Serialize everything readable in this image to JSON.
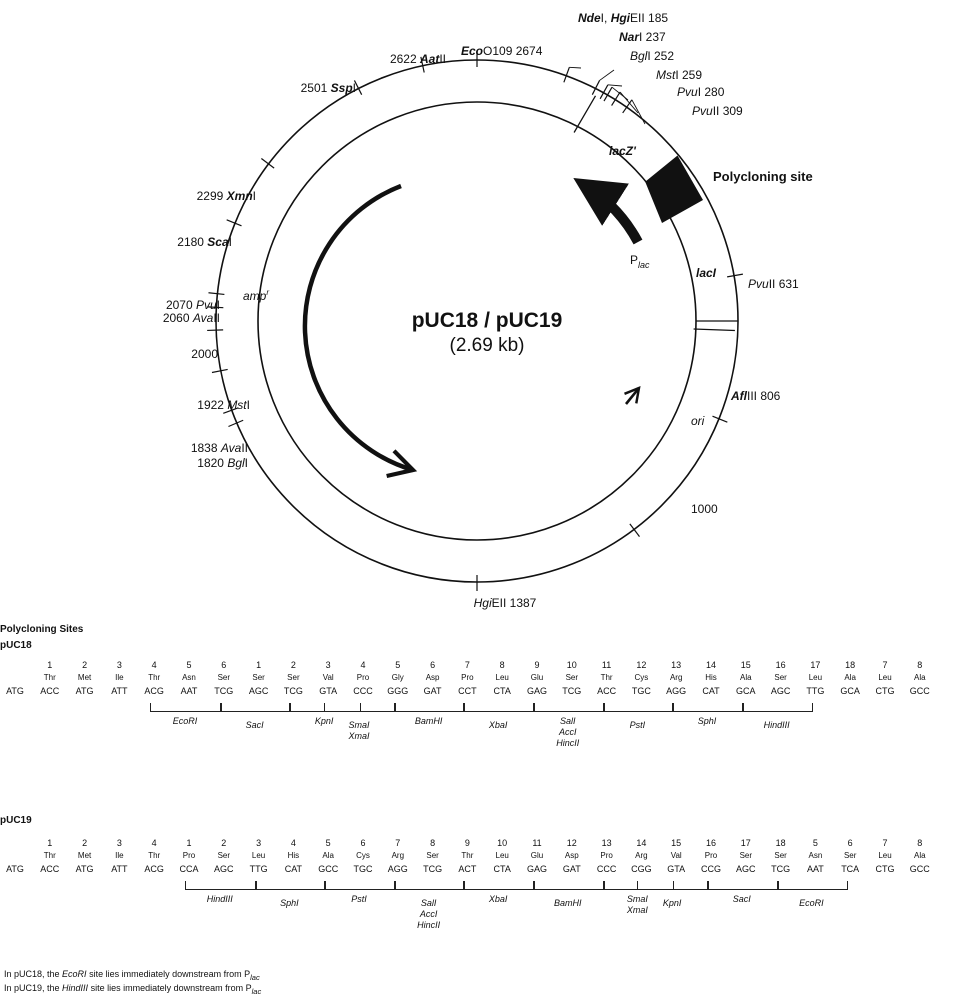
{
  "plasmid": {
    "name": "pUC18 / pUC19",
    "size": "(2.69 kb)",
    "sites": [
      {
        "pre": "",
        "name": "Nde",
        "post": "I, ",
        "name2": "Hgi",
        "post2": "EII 185",
        "bold": true,
        "angle": 20
      },
      {
        "pre": "",
        "name": "Nar",
        "post": "I 237",
        "bold": true,
        "angle": 27
      },
      {
        "pre": "",
        "name": "Bgl",
        "post": "I 252",
        "bold": false,
        "angle": 29
      },
      {
        "pre": "",
        "name": "Mst",
        "post": "I 259",
        "bold": false,
        "angle": 30
      },
      {
        "pre": "",
        "name": "Pvu",
        "post": "I 280",
        "bold": false,
        "angle": 32
      },
      {
        "pre": "",
        "name": "Pvu",
        "post": "II 309",
        "bold": false,
        "angle": 35
      },
      {
        "pre": "",
        "name": "Pvu",
        "post": "II 631",
        "bold": false,
        "angle": 80
      },
      {
        "pre": "",
        "name": "Afl",
        "post": "III 806",
        "bold": true,
        "angle": 112
      },
      {
        "pre": "",
        "name": "1000",
        "post": "",
        "bold": false,
        "angle": 143,
        "plain": true
      },
      {
        "pre": "",
        "name": "Hgi",
        "post": "EII 1387",
        "bold": false,
        "angle": 180
      },
      {
        "pre": "1820 ",
        "name": "Bgl",
        "post": "I",
        "bold": false,
        "angle": 247
      },
      {
        "pre": "1838 ",
        "name": "Ava",
        "post": "II",
        "bold": false,
        "angle": 250
      },
      {
        "pre": "1922 ",
        "name": "Mst",
        "post": "I",
        "bold": false,
        "angle": 259
      },
      {
        "pre": "2000",
        "name": "",
        "post": "",
        "bold": false,
        "angle": 268,
        "plain": true
      },
      {
        "pre": "2060 ",
        "name": "Ava",
        "post": "II",
        "bold": false,
        "angle": 273
      },
      {
        "pre": "2070 ",
        "name": "Pvu",
        "post": "I",
        "bold": false,
        "angle": 276
      },
      {
        "pre": "2180 ",
        "name": "Sca",
        "post": "I",
        "bold": true,
        "angle": 292
      },
      {
        "pre": "2299 ",
        "name": "Xmn",
        "post": "I",
        "bold": true,
        "angle": 307
      },
      {
        "pre": "2501 ",
        "name": "Ssp",
        "post": "I",
        "bold": true,
        "angle": 333
      },
      {
        "pre": "2622 ",
        "name": "Aat",
        "post": "II",
        "bold": true,
        "angle": 348
      },
      {
        "pre": "",
        "name": "Eco",
        "post": "O109 2674",
        "bold": true,
        "angle": 360
      }
    ],
    "regions": {
      "lacZ": "lacZ'",
      "lacI": "lacI",
      "amp": "amp",
      "amp_sup": "r",
      "ori": "ori",
      "plac": "P",
      "plac_sub": "lac",
      "polycloning": "Polycloning site"
    }
  },
  "poly": {
    "title": "Polycloning Sites",
    "pUC18": {
      "label": "pUC18",
      "codons": [
        {
          "n": "",
          "aa": "",
          "c": "ATG"
        },
        {
          "n": "1",
          "aa": "Thr",
          "c": "ACC"
        },
        {
          "n": "2",
          "aa": "Met",
          "c": "ATG"
        },
        {
          "n": "3",
          "aa": "Ile",
          "c": "ATT"
        },
        {
          "n": "4",
          "aa": "Thr",
          "c": "ACG"
        },
        {
          "n": "5",
          "aa": "Asn",
          "c": "AAT"
        },
        {
          "n": "6",
          "aa": "Ser",
          "c": "TCG"
        },
        {
          "n": "1",
          "aa": "Ser",
          "c": "AGC"
        },
        {
          "n": "2",
          "aa": "Ser",
          "c": "TCG"
        },
        {
          "n": "3",
          "aa": "Val",
          "c": "GTA"
        },
        {
          "n": "4",
          "aa": "Pro",
          "c": "CCC"
        },
        {
          "n": "5",
          "aa": "Gly",
          "c": "GGG"
        },
        {
          "n": "6",
          "aa": "Asp",
          "c": "GAT"
        },
        {
          "n": "7",
          "aa": "Pro",
          "c": "CCT"
        },
        {
          "n": "8",
          "aa": "Leu",
          "c": "CTA"
        },
        {
          "n": "9",
          "aa": "Glu",
          "c": "GAG"
        },
        {
          "n": "10",
          "aa": "Ser",
          "c": "TCG"
        },
        {
          "n": "11",
          "aa": "Thr",
          "c": "ACC"
        },
        {
          "n": "12",
          "aa": "Cys",
          "c": "TGC"
        },
        {
          "n": "13",
          "aa": "Arg",
          "c": "AGG"
        },
        {
          "n": "14",
          "aa": "His",
          "c": "CAT"
        },
        {
          "n": "15",
          "aa": "Ala",
          "c": "GCA"
        },
        {
          "n": "16",
          "aa": "Ser",
          "c": "AGC"
        },
        {
          "n": "17",
          "aa": "Leu",
          "c": "TTG"
        },
        {
          "n": "18",
          "aa": "Ala",
          "c": "GCA"
        },
        {
          "n": "7",
          "aa": "Leu",
          "c": "CTG"
        },
        {
          "n": "8",
          "aa": "Ala",
          "c": "GCC"
        }
      ],
      "enzymes": [
        {
          "lines": [
            "EcoRI"
          ],
          "from": 4,
          "to": 6
        },
        {
          "lines": [
            "SacI"
          ],
          "from": 6,
          "to": 8
        },
        {
          "lines": [
            "KpnI"
          ],
          "from": 8,
          "to": 10
        },
        {
          "lines": [
            "SmaI",
            "XmaI"
          ],
          "from": 9,
          "to": 11
        },
        {
          "lines": [
            "BamHI"
          ],
          "from": 11,
          "to": 13
        },
        {
          "lines": [
            "XbaI"
          ],
          "from": 13,
          "to": 15
        },
        {
          "lines": [
            "SalI",
            "AccI",
            "HincII"
          ],
          "from": 15,
          "to": 17
        },
        {
          "lines": [
            "PstI"
          ],
          "from": 17,
          "to": 19
        },
        {
          "lines": [
            "SphI"
          ],
          "from": 19,
          "to": 21
        },
        {
          "lines": [
            "HindIII"
          ],
          "from": 21,
          "to": 23
        }
      ]
    },
    "pUC19": {
      "label": "pUC19",
      "codons": [
        {
          "n": "",
          "aa": "",
          "c": "ATG"
        },
        {
          "n": "1",
          "aa": "Thr",
          "c": "ACC"
        },
        {
          "n": "2",
          "aa": "Met",
          "c": "ATG"
        },
        {
          "n": "3",
          "aa": "Ile",
          "c": "ATT"
        },
        {
          "n": "4",
          "aa": "Thr",
          "c": "ACG"
        },
        {
          "n": "1",
          "aa": "Pro",
          "c": "CCA"
        },
        {
          "n": "2",
          "aa": "Ser",
          "c": "AGC"
        },
        {
          "n": "3",
          "aa": "Leu",
          "c": "TTG"
        },
        {
          "n": "4",
          "aa": "His",
          "c": "CAT"
        },
        {
          "n": "5",
          "aa": "Ala",
          "c": "GCC"
        },
        {
          "n": "6",
          "aa": "Cys",
          "c": "TGC"
        },
        {
          "n": "7",
          "aa": "Arg",
          "c": "AGG"
        },
        {
          "n": "8",
          "aa": "Ser",
          "c": "TCG"
        },
        {
          "n": "9",
          "aa": "Thr",
          "c": "ACT"
        },
        {
          "n": "10",
          "aa": "Leu",
          "c": "CTA"
        },
        {
          "n": "11",
          "aa": "Glu",
          "c": "GAG"
        },
        {
          "n": "12",
          "aa": "Asp",
          "c": "GAT"
        },
        {
          "n": "13",
          "aa": "Pro",
          "c": "CCC"
        },
        {
          "n": "14",
          "aa": "Arg",
          "c": "CGG"
        },
        {
          "n": "15",
          "aa": "Val",
          "c": "GTA"
        },
        {
          "n": "16",
          "aa": "Pro",
          "c": "CCG"
        },
        {
          "n": "17",
          "aa": "Ser",
          "c": "AGC"
        },
        {
          "n": "18",
          "aa": "Ser",
          "c": "TCG"
        },
        {
          "n": "5",
          "aa": "Asn",
          "c": "AAT"
        },
        {
          "n": "6",
          "aa": "Ser",
          "c": "TCA"
        },
        {
          "n": "7",
          "aa": "Leu",
          "c": "CTG"
        },
        {
          "n": "8",
          "aa": "Ala",
          "c": "GCC"
        }
      ],
      "enzymes": [
        {
          "lines": [
            "HindIII"
          ],
          "from": 5,
          "to": 7
        },
        {
          "lines": [
            "SphI"
          ],
          "from": 7,
          "to": 9
        },
        {
          "lines": [
            "PstI"
          ],
          "from": 9,
          "to": 11
        },
        {
          "lines": [
            "SalI",
            "AccI",
            "HincII"
          ],
          "from": 11,
          "to": 13
        },
        {
          "lines": [
            "XbaI"
          ],
          "from": 13,
          "to": 15
        },
        {
          "lines": [
            "BamHI"
          ],
          "from": 15,
          "to": 17
        },
        {
          "lines": [
            "SmaI",
            "XmaI"
          ],
          "from": 17,
          "to": 19
        },
        {
          "lines": [
            "KpnI"
          ],
          "from": 18,
          "to": 20
        },
        {
          "lines": [
            "SacI"
          ],
          "from": 20,
          "to": 22
        },
        {
          "lines": [
            "EcoRI"
          ],
          "from": 22,
          "to": 24
        }
      ]
    }
  },
  "notes": [
    {
      "a": "In pUC18, the ",
      "b": "EcoRI",
      "c": " site lies immediately downstream from P",
      "d": "lac"
    },
    {
      "a": "In pUC19, the ",
      "b": "HindIII",
      "c": " site lies immediately downstream from P",
      "d": "lac"
    }
  ]
}
